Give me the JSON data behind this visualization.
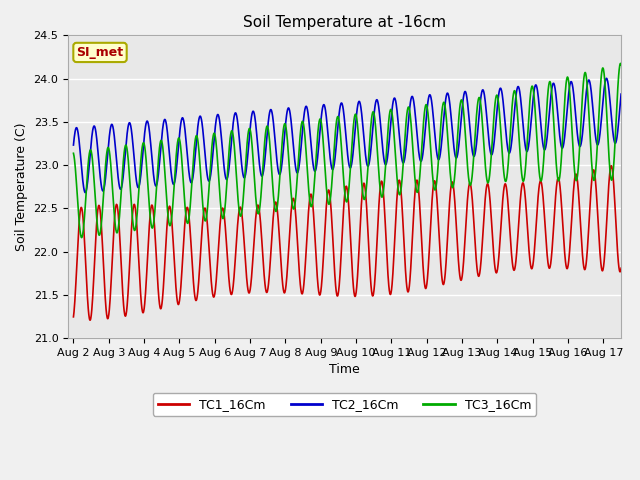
{
  "title": "Soil Temperature at -16cm",
  "xlabel": "Time",
  "ylabel": "Soil Temperature (C)",
  "ylim": [
    21.0,
    24.5
  ],
  "xlim_start": -0.15,
  "xlim_end": 15.5,
  "xtick_labels": [
    "Aug 2",
    "Aug 3",
    "Aug 4",
    "Aug 5",
    "Aug 6",
    "Aug 7",
    "Aug 8",
    "Aug 9",
    "Aug 10",
    "Aug 11",
    "Aug 12",
    "Aug 13",
    "Aug 14",
    "Aug 15",
    "Aug 16",
    "Aug 17"
  ],
  "xtick_positions": [
    0,
    1,
    2,
    3,
    4,
    5,
    6,
    7,
    8,
    9,
    10,
    11,
    12,
    13,
    14,
    15
  ],
  "colors": {
    "TC1": "#cc0000",
    "TC2": "#0000cc",
    "TC3": "#00aa00"
  },
  "legend_labels": [
    "TC1_16Cm",
    "TC2_16Cm",
    "TC3_16Cm"
  ],
  "annotation_text": "SI_met",
  "annotation_color": "#aa0000",
  "annotation_bg": "#ffffcc",
  "annotation_border": "#aaaa00",
  "plot_bg": "#e8e8e8",
  "fig_bg": "#f0f0f0",
  "grid_color": "#ffffff",
  "yticks": [
    21.0,
    21.5,
    22.0,
    22.5,
    23.0,
    23.5,
    24.0,
    24.5
  ],
  "title_fontsize": 11,
  "axis_label_fontsize": 9,
  "tick_fontsize": 8,
  "legend_fontsize": 9,
  "linewidth": 1.2
}
